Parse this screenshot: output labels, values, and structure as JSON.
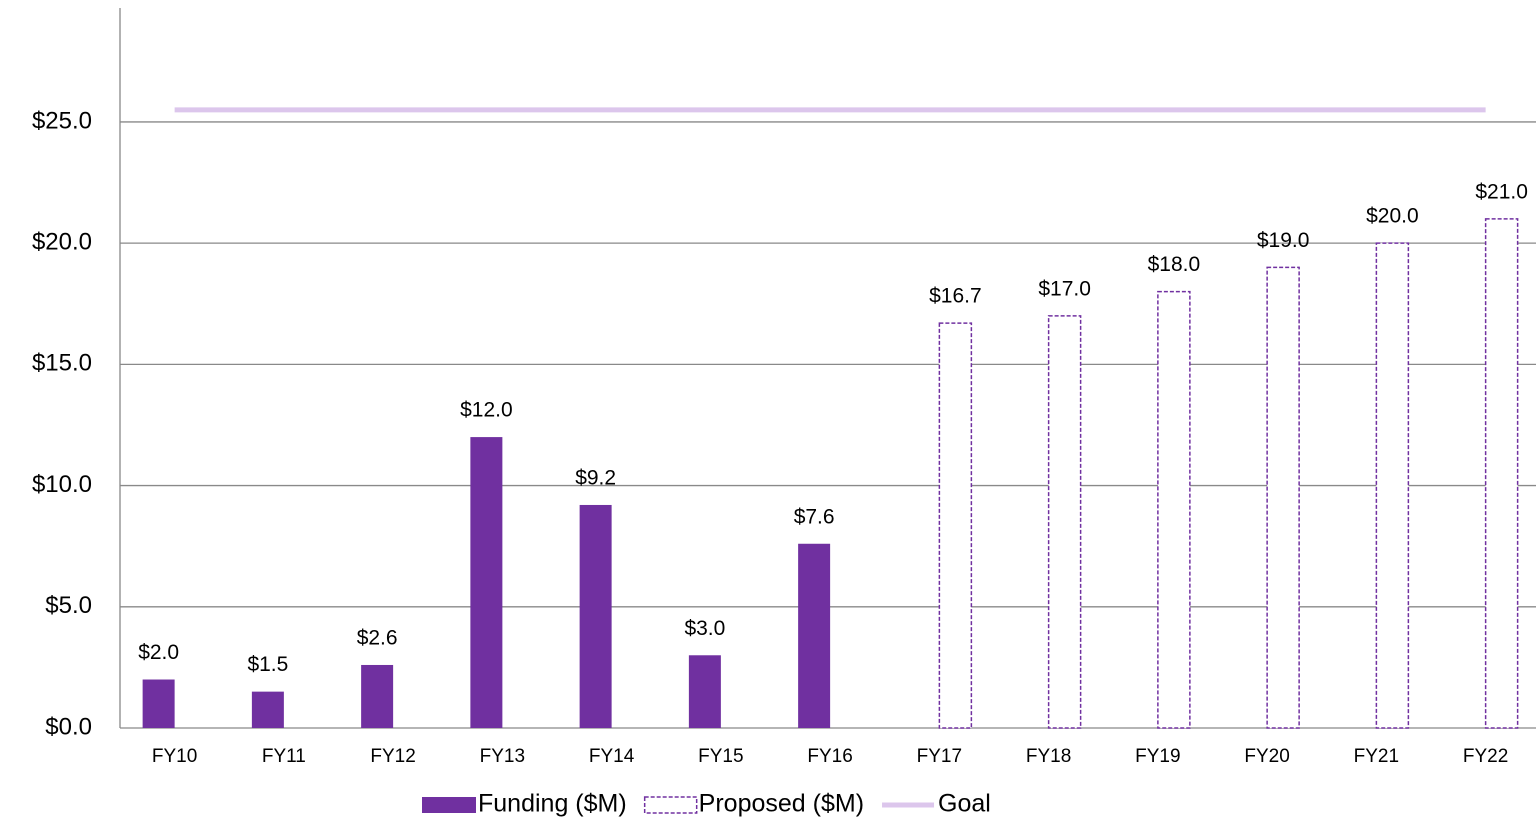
{
  "chart_data": {
    "type": "bar",
    "categories": [
      "FY10",
      "FY11",
      "FY12",
      "FY13",
      "FY14",
      "FY15",
      "FY16",
      "FY17",
      "FY18",
      "FY19",
      "FY20",
      "FY21",
      "FY22"
    ],
    "series": [
      {
        "name": "Funding ($M)",
        "color": "#7030a0",
        "style": "solid",
        "values": [
          2.0,
          1.5,
          2.6,
          12.0,
          9.2,
          3.0,
          7.6,
          null,
          null,
          null,
          null,
          null,
          null
        ],
        "value_labels": [
          "$2.0",
          "$1.5",
          "$2.6",
          "$12.0",
          "$9.2",
          "$3.0",
          "$7.6",
          null,
          null,
          null,
          null,
          null,
          null
        ]
      },
      {
        "name": "Proposed ($M)",
        "color": "#7030a0",
        "style": "dashed",
        "values": [
          null,
          null,
          null,
          null,
          null,
          null,
          null,
          16.7,
          17.0,
          18.0,
          19.0,
          20.0,
          21.0
        ],
        "value_labels": [
          null,
          null,
          null,
          null,
          null,
          null,
          null,
          "$16.7",
          "$17.0",
          "$18.0",
          "$19.0",
          "$20.0",
          "$21.0"
        ]
      },
      {
        "name": "Goal",
        "color": "#dcc6ec",
        "type": "line",
        "values": [
          25.5,
          25.5,
          25.5,
          25.5,
          25.5,
          25.5,
          25.5,
          25.5,
          25.5,
          25.5,
          25.5,
          25.5,
          25.5
        ]
      }
    ],
    "ylim": [
      0,
      29.7
    ],
    "yticks": [
      {
        "value": 0,
        "label": "$0.0"
      },
      {
        "value": 5,
        "label": "$5.0"
      },
      {
        "value": 10,
        "label": "$10.0"
      },
      {
        "value": 15,
        "label": "$15.0"
      },
      {
        "value": 20,
        "label": "$20.0"
      },
      {
        "value": 25,
        "label": "$25.0"
      }
    ],
    "grid": true,
    "legend": "bottom"
  }
}
